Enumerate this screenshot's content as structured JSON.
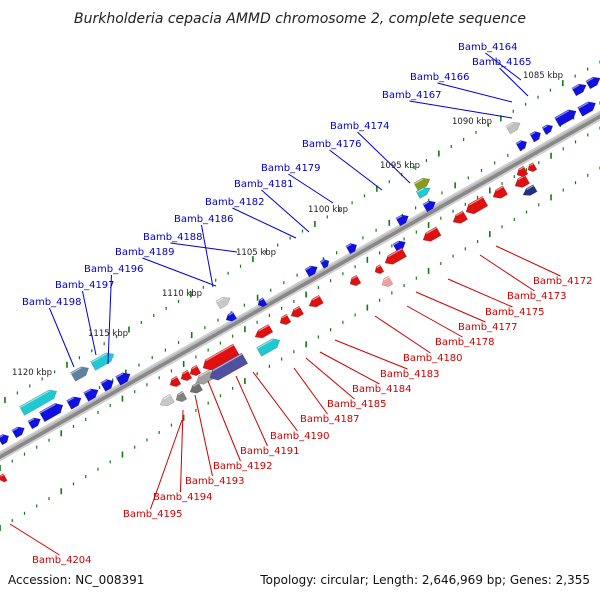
{
  "title": "Burkholderia cepacia AMMD chromosome 2, complete sequence",
  "footer": {
    "accession": "Accession: NC_008391",
    "topology": "Topology: circular; Length: 2,646,969 bp; Genes: 2,355"
  },
  "colors": {
    "forward_label": "#0000cc",
    "reverse_label": "#cc0000",
    "forward_gene": "#1010e0",
    "reverse_gene": "#e01010",
    "tick": "#107a10",
    "backbone": "#888888"
  },
  "kbp_ticks": [
    "1085 kbp",
    "1090 kbp",
    "1095 kbp",
    "1100 kbp",
    "1105 kbp",
    "1110 kbp",
    "1115 kbp",
    "1120 kbp"
  ],
  "forward_labels": [
    "Bamb_4164",
    "Bamb_4165",
    "Bamb_4166",
    "Bamb_4167",
    "Bamb_4174",
    "Bamb_4176",
    "Bamb_4179",
    "Bamb_4181",
    "Bamb_4182",
    "Bamb_4186",
    "Bamb_4188",
    "Bamb_4189",
    "Bamb_4196",
    "Bamb_4197",
    "Bamb_4198"
  ],
  "reverse_labels": [
    "Bamb_4172",
    "Bamb_4173",
    "Bamb_4175",
    "Bamb_4177",
    "Bamb_4178",
    "Bamb_4180",
    "Bamb_4183",
    "Bamb_4184",
    "Bamb_4185",
    "Bamb_4187",
    "Bamb_4190",
    "Bamb_4191",
    "Bamb_4192",
    "Bamb_4193",
    "Bamb_4194",
    "Bamb_4195",
    "Bamb_4204"
  ]
}
